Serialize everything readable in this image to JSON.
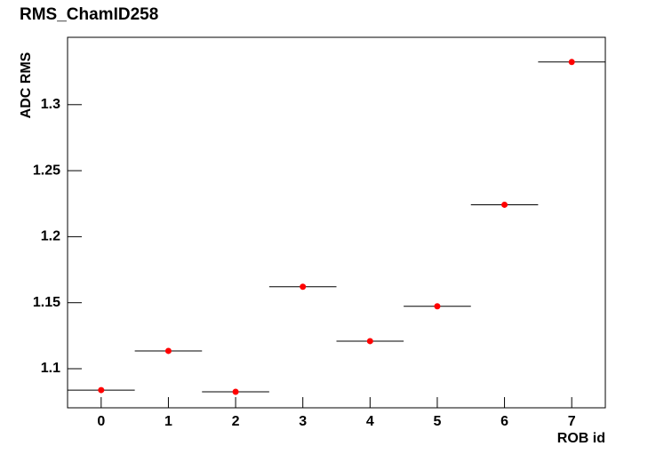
{
  "chart_data": {
    "type": "scatter",
    "title": "RMS_ChamID258",
    "x_label": "ROB id",
    "y_label": "ADC RMS",
    "x": [
      0,
      1,
      2,
      3,
      4,
      5,
      6,
      7
    ],
    "values": [
      1.0838,
      1.1135,
      1.0825,
      1.1621,
      1.1209,
      1.1473,
      1.2242,
      1.3323
    ],
    "xerr": 0.5,
    "color": "#ff0000",
    "xlim": [
      -0.5,
      7.5
    ],
    "xticks": [
      0,
      1,
      2,
      3,
      4,
      5,
      6,
      7
    ],
    "ylim": [
      1.0704,
      1.351
    ],
    "yticks": [
      1.1,
      1.15,
      1.2,
      1.25,
      1.3
    ],
    "grid": false
  }
}
